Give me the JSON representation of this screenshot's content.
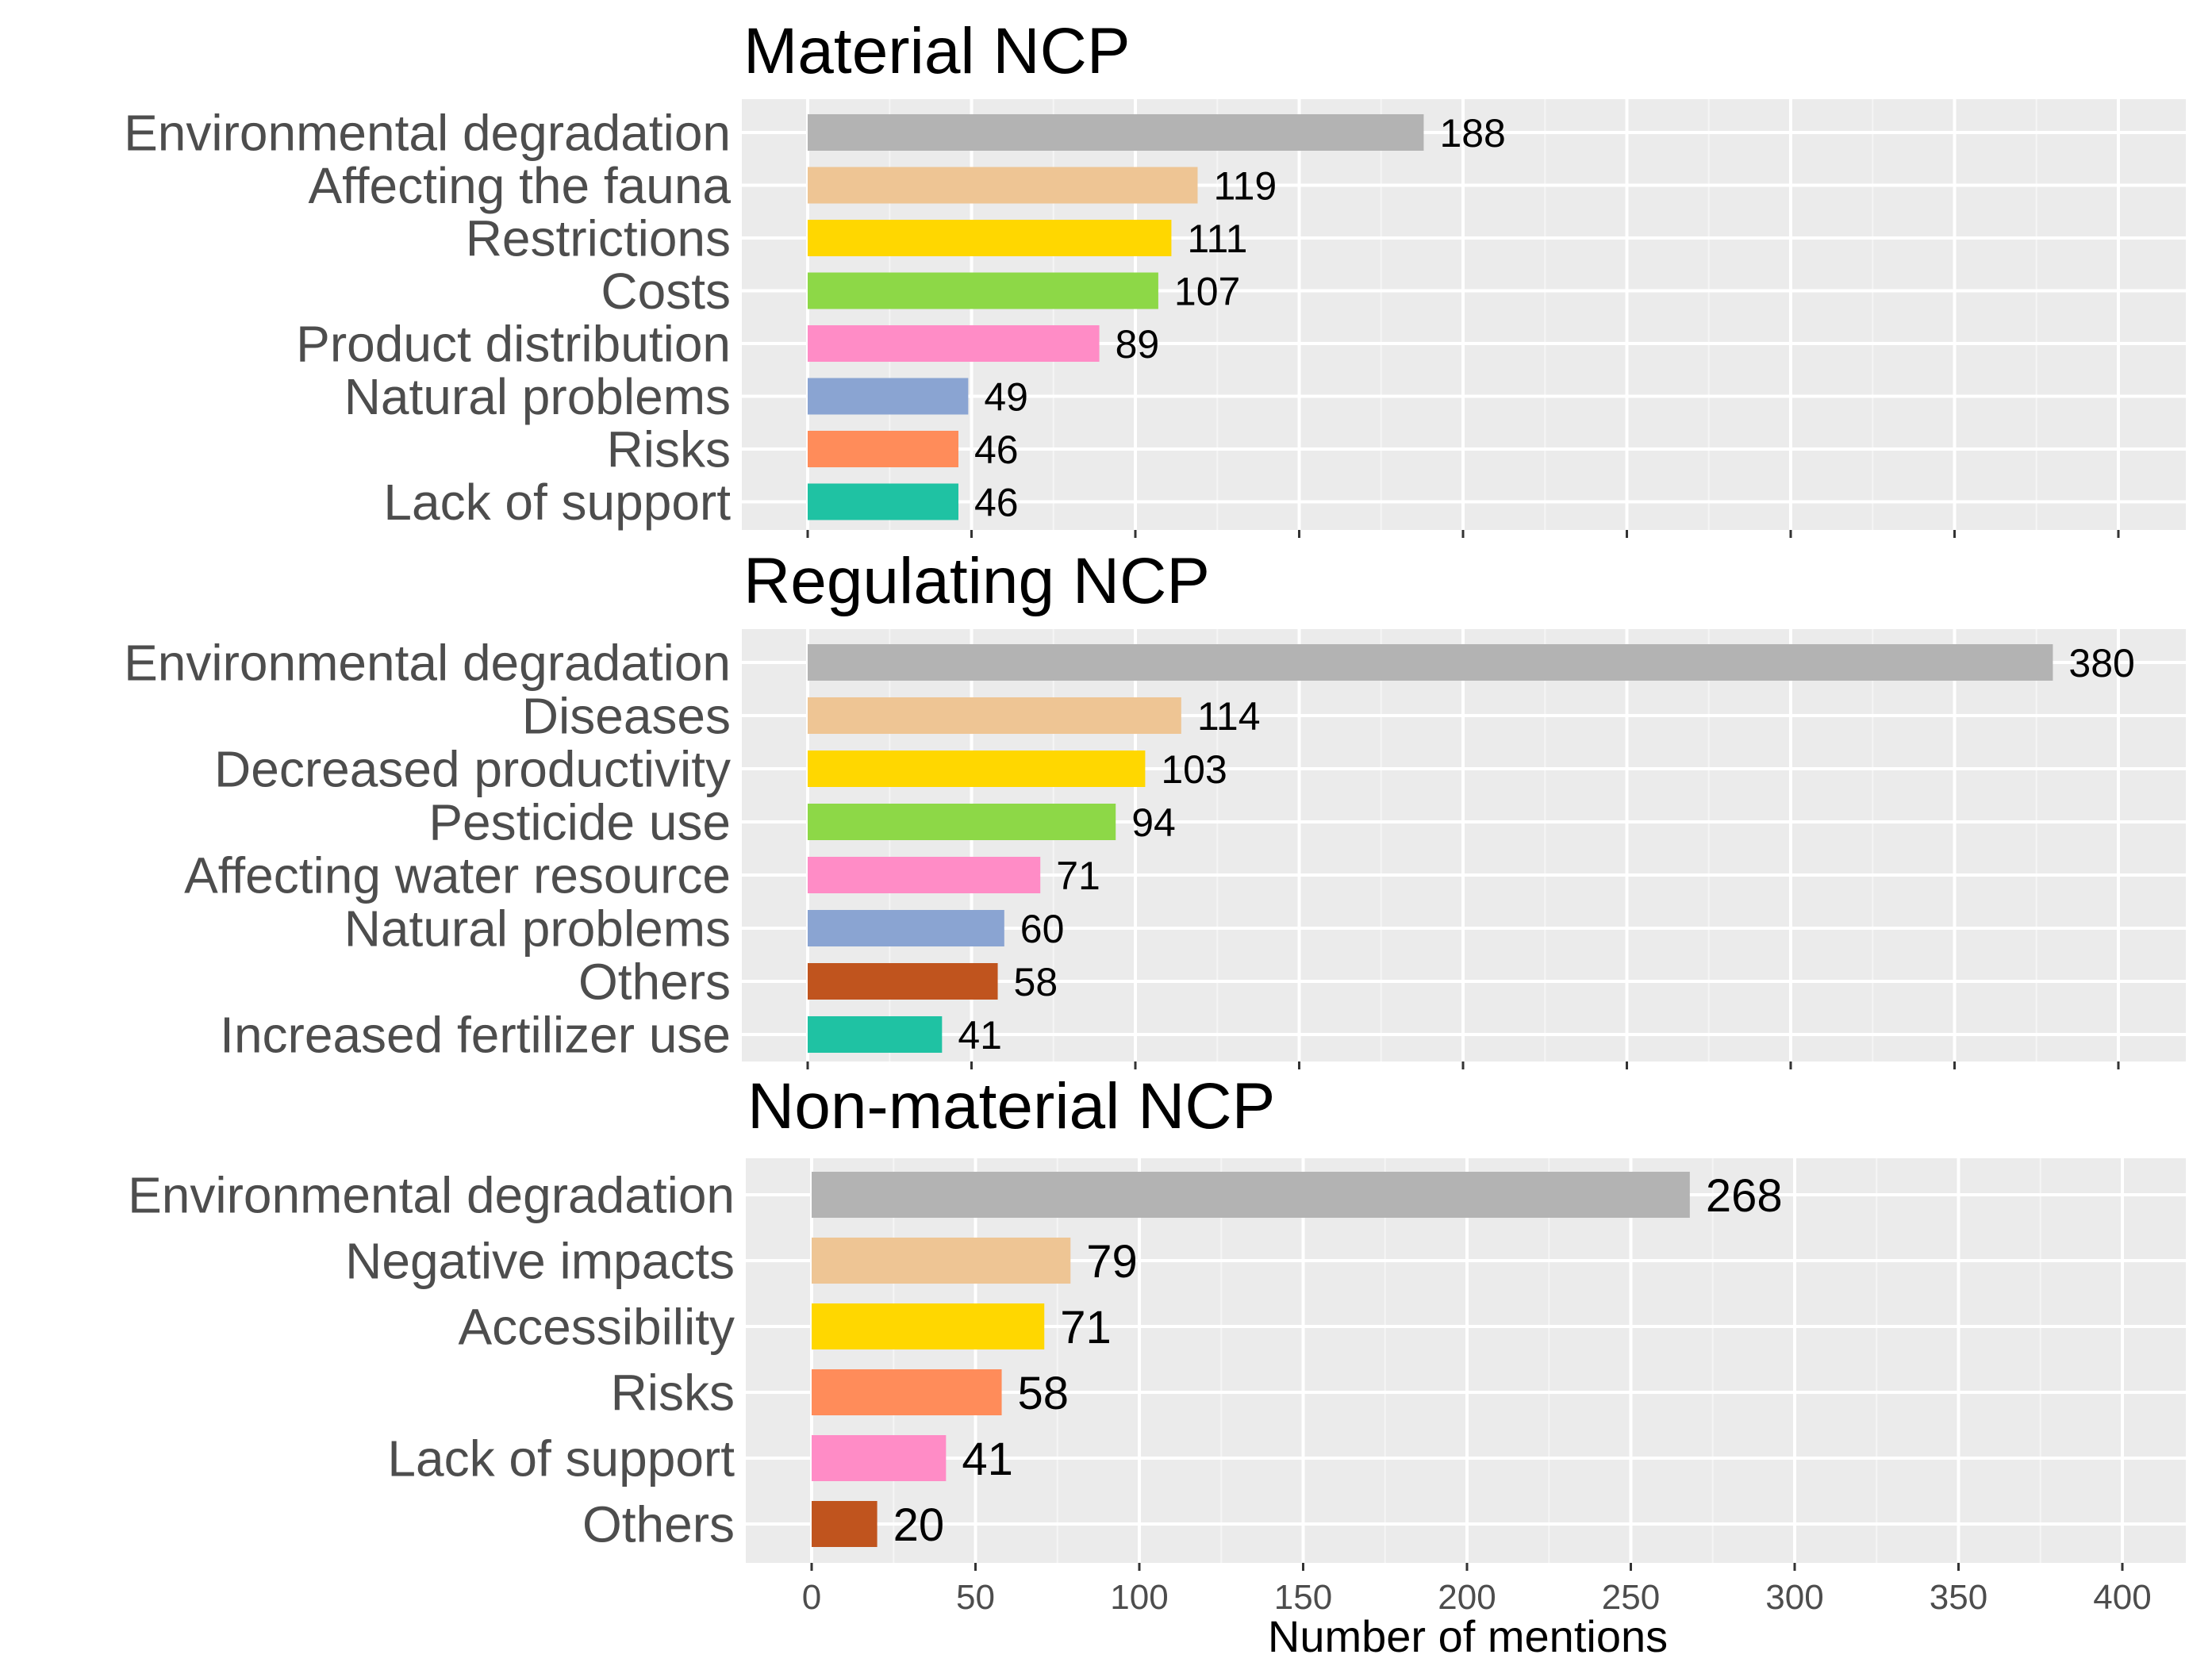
{
  "chart_data": {
    "type": "bar",
    "orientation": "horizontal",
    "xlabel": "Number of mentions",
    "xlim": [
      0,
      420
    ],
    "xticks": [
      0,
      50,
      100,
      150,
      200,
      250,
      300,
      350,
      400
    ],
    "grid": true,
    "panel_background": "#ebebeb",
    "panels": [
      {
        "title": "Material NCP",
        "categories": [
          "Environmental degradation",
          "Affecting the fauna",
          "Restrictions",
          "Costs",
          "Product distribution",
          "Natural problems",
          "Risks",
          "Lack of support"
        ],
        "values": [
          188,
          119,
          111,
          107,
          89,
          49,
          46,
          46
        ],
        "colors": [
          "#b3b3b3",
          "#eec594",
          "#ffd700",
          "#8dd847",
          "#ff8cc6",
          "#8aa4d2",
          "#ff8c5a",
          "#1fc2a3"
        ]
      },
      {
        "title": "Regulating NCP",
        "categories": [
          "Environmental degradation",
          "Diseases",
          "Decreased productivity",
          "Pesticide use",
          "Affecting water resource",
          "Natural problems",
          "Others",
          "Increased fertilizer use"
        ],
        "values": [
          380,
          114,
          103,
          94,
          71,
          60,
          58,
          41
        ],
        "colors": [
          "#b3b3b3",
          "#eec594",
          "#ffd700",
          "#8dd847",
          "#ff8cc6",
          "#8aa4d2",
          "#c0541e",
          "#1fc2a3"
        ]
      },
      {
        "title": "Non-material NCP",
        "categories": [
          "Environmental degradation",
          "Negative impacts",
          "Accessibility",
          "Risks",
          "Lack of support",
          "Others"
        ],
        "values": [
          268,
          79,
          71,
          58,
          41,
          20
        ],
        "colors": [
          "#b3b3b3",
          "#eec594",
          "#ffd700",
          "#ff8c5a",
          "#ff8cc6",
          "#c0541e"
        ]
      }
    ]
  }
}
